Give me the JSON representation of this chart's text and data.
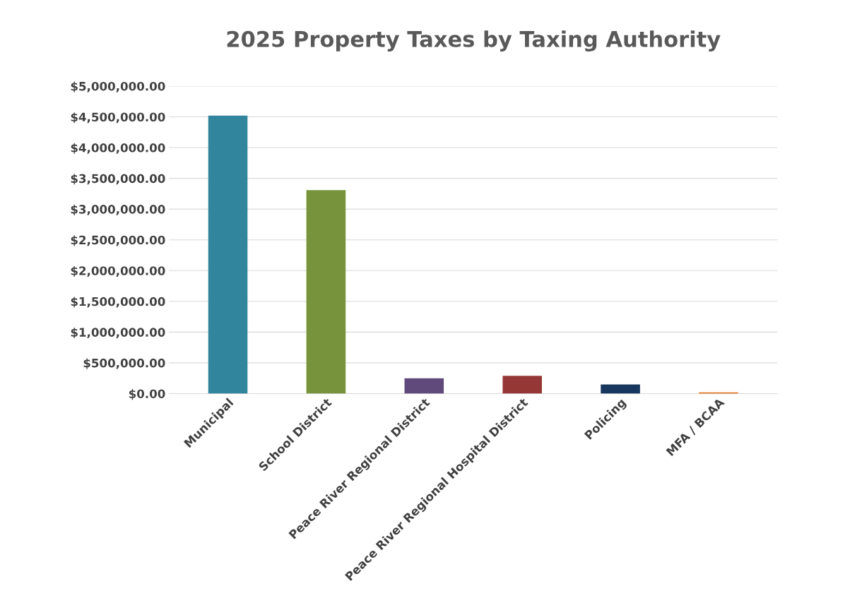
{
  "chart_data": {
    "type": "bar",
    "title": "2025 Property Taxes by Taxing Authority",
    "categories": [
      "Municipal",
      "School District",
      "Peace River Regional District",
      "Peace River Regional Hospital District",
      "Policing",
      "MFA / BCAA"
    ],
    "values": [
      4520000,
      3310000,
      250000,
      290000,
      150000,
      20000
    ],
    "colors": [
      "#31859c",
      "#77933c",
      "#604a7b",
      "#953735",
      "#17375e",
      "#e46c0a"
    ],
    "ylim": [
      0,
      5000000
    ],
    "yticks": [
      {
        "value": 0,
        "label": "$0.00"
      },
      {
        "value": 500000,
        "label": "$500,000.00"
      },
      {
        "value": 1000000,
        "label": "$1,000,000.00"
      },
      {
        "value": 1500000,
        "label": "$1,500,000.00"
      },
      {
        "value": 2000000,
        "label": "$2,000,000.00"
      },
      {
        "value": 2500000,
        "label": "$2,500,000.00"
      },
      {
        "value": 3000000,
        "label": "$3,000,000.00"
      },
      {
        "value": 3500000,
        "label": "$3,500,000.00"
      },
      {
        "value": 4000000,
        "label": "$4,000,000.00"
      },
      {
        "value": 4500000,
        "label": "$4,500,000.00"
      },
      {
        "value": 5000000,
        "label": "$5,000,000.00"
      }
    ],
    "grid": "y"
  }
}
